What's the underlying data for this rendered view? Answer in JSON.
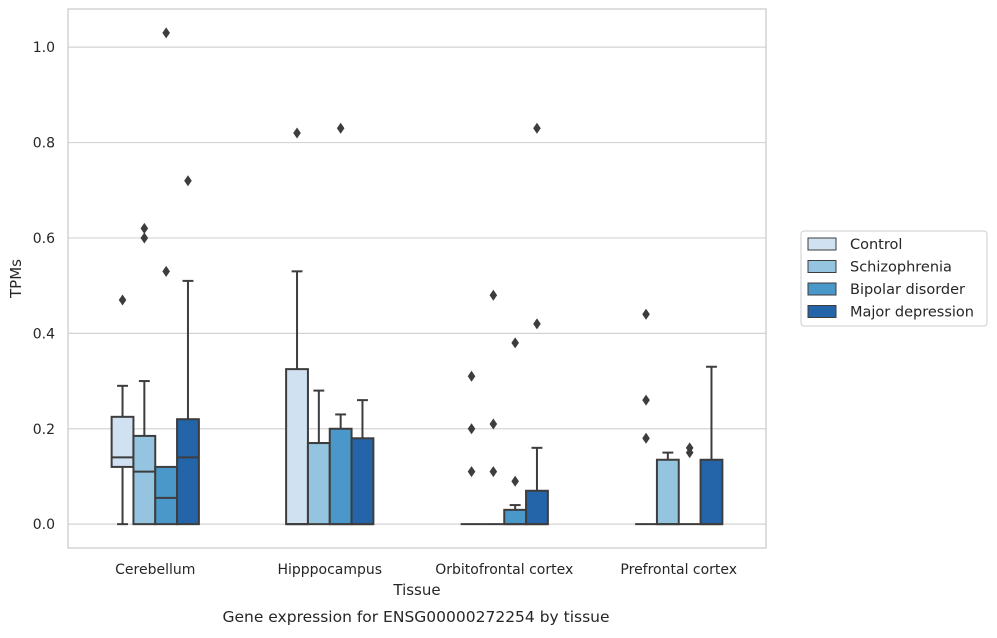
{
  "chart_data": {
    "type": "box",
    "xlabel": "Tissue",
    "ylabel": "TPMs",
    "caption": "Gene expression for ENSG00000272254 by tissue",
    "categories": [
      "Cerebellum",
      "Hipppocampus",
      "Orbitofrontal cortex",
      "Prefrontal cortex"
    ],
    "ylim": [
      -0.05,
      1.08
    ],
    "yticks": [
      0.0,
      0.2,
      0.4,
      0.6,
      0.8,
      1.0
    ],
    "ytick_labels": [
      "0.0",
      "0.2",
      "0.4",
      "0.6",
      "0.8",
      "1.0"
    ],
    "grid": "horizontal",
    "legend_position": "right, outside plot",
    "series": [
      {
        "name": "Control",
        "color": "#d0e1f2",
        "boxes": [
          {
            "q1": 0.12,
            "median": 0.14,
            "q3": 0.225,
            "whisker_low": 0.0,
            "whisker_high": 0.29,
            "outliers": [
              0.47
            ]
          },
          {
            "q1": 0.0,
            "median": 0.0,
            "q3": 0.325,
            "whisker_low": 0.0,
            "whisker_high": 0.53,
            "outliers": [
              0.82
            ]
          },
          {
            "q1": 0.0,
            "median": 0.0,
            "q3": 0.0,
            "whisker_low": 0.0,
            "whisker_high": 0.0,
            "outliers": [
              0.11,
              0.2,
              0.31
            ]
          },
          {
            "q1": 0.0,
            "median": 0.0,
            "q3": 0.0,
            "whisker_low": 0.0,
            "whisker_high": 0.0,
            "outliers": [
              0.18,
              0.26,
              0.44
            ]
          }
        ]
      },
      {
        "name": "Schizophrenia",
        "color": "#94c4df",
        "boxes": [
          {
            "q1": 0.0,
            "median": 0.11,
            "q3": 0.185,
            "whisker_low": 0.0,
            "whisker_high": 0.3,
            "outliers": [
              0.6,
              0.62
            ]
          },
          {
            "q1": 0.0,
            "median": 0.17,
            "q3": 0.17,
            "whisker_low": 0.0,
            "whisker_high": 0.28,
            "outliers": []
          },
          {
            "q1": 0.0,
            "median": 0.0,
            "q3": 0.0,
            "whisker_low": 0.0,
            "whisker_high": 0.0,
            "outliers": [
              0.11,
              0.21,
              0.48
            ]
          },
          {
            "q1": 0.0,
            "median": 0.0,
            "q3": 0.135,
            "whisker_low": 0.0,
            "whisker_high": 0.15,
            "outliers": []
          }
        ]
      },
      {
        "name": "Bipolar disorder",
        "color": "#4a98c9",
        "boxes": [
          {
            "q1": 0.0,
            "median": 0.055,
            "q3": 0.12,
            "whisker_low": 0.0,
            "whisker_high": 0.12,
            "outliers": [
              0.53,
              1.03
            ]
          },
          {
            "q1": 0.0,
            "median": 0.0,
            "q3": 0.2,
            "whisker_low": 0.0,
            "whisker_high": 0.23,
            "outliers": [
              0.83
            ]
          },
          {
            "q1": 0.0,
            "median": 0.0,
            "q3": 0.03,
            "whisker_low": 0.0,
            "whisker_high": 0.04,
            "outliers": [
              0.09,
              0.38
            ]
          },
          {
            "q1": 0.0,
            "median": 0.0,
            "q3": 0.0,
            "whisker_low": 0.0,
            "whisker_high": 0.0,
            "outliers": [
              0.15,
              0.16
            ]
          }
        ]
      },
      {
        "name": "Major depression",
        "color": "#2464a8",
        "boxes": [
          {
            "q1": 0.0,
            "median": 0.14,
            "q3": 0.22,
            "whisker_low": 0.0,
            "whisker_high": 0.51,
            "outliers": [
              0.72
            ]
          },
          {
            "q1": 0.0,
            "median": 0.0,
            "q3": 0.18,
            "whisker_low": 0.0,
            "whisker_high": 0.26,
            "outliers": []
          },
          {
            "q1": 0.0,
            "median": 0.0,
            "q3": 0.07,
            "whisker_low": 0.0,
            "whisker_high": 0.16,
            "outliers": [
              0.42,
              0.83
            ]
          },
          {
            "q1": 0.0,
            "median": 0.0,
            "q3": 0.135,
            "whisker_low": 0.0,
            "whisker_high": 0.33,
            "outliers": []
          }
        ]
      }
    ]
  }
}
